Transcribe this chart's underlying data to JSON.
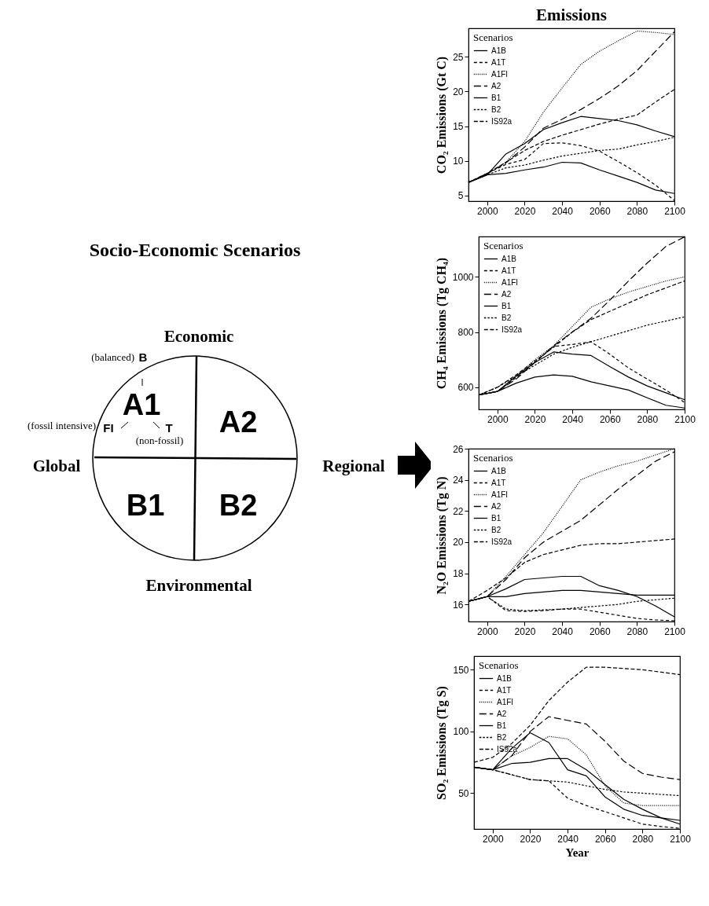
{
  "chart_data": [
    {
      "type": "other",
      "title": "Socio-Economic Scenarios",
      "annotations": [
        "Economic",
        "Environmental",
        "Global",
        "Regional",
        "A1",
        "A2",
        "B1",
        "B2",
        "(balanced)",
        "B",
        "(fossil intensive)",
        "FI",
        "T",
        "(non-fossil)"
      ]
    },
    {
      "type": "line",
      "title": "Emissions",
      "ylabel": "CO₂ Emissions (Gt C)",
      "legend_title": "Scenarios",
      "legend": "top left",
      "grid": false,
      "xlim": [
        1990,
        2100
      ],
      "xticks": [
        2000,
        2020,
        2040,
        2060,
        2080,
        2100
      ],
      "ylim": [
        4.2,
        29.1
      ],
      "yticks": [
        5,
        10,
        15,
        20,
        25
      ],
      "x": [
        1990,
        2000,
        2010,
        2020,
        2030,
        2040,
        2050,
        2060,
        2070,
        2080,
        2090,
        2100
      ],
      "series": [
        {
          "name": "A1B",
          "color": "#000000",
          "line_style": "solid",
          "values": [
            6.9,
            8.0,
            11.0,
            12.5,
            14.5,
            15.5,
            16.4,
            16.1,
            15.8,
            15.2,
            14.3,
            13.5
          ]
        },
        {
          "name": "A1T",
          "color": "#000000",
          "line_style": "dashed",
          "values": [
            6.9,
            8.2,
            9.5,
            10.2,
            12.5,
            12.6,
            12.2,
            11.4,
            9.9,
            8.3,
            6.5,
            4.3
          ]
        },
        {
          "name": "A1FI",
          "color": "#000000",
          "line_style": "dotted",
          "values": [
            6.9,
            8.1,
            9.8,
            12.8,
            17.0,
            20.5,
            23.9,
            25.8,
            27.3,
            28.7,
            28.5,
            28.2
          ]
        },
        {
          "name": "A2",
          "color": "#000000",
          "line_style": "dashed",
          "values": [
            6.9,
            8.2,
            9.7,
            12.0,
            14.7,
            16.0,
            17.4,
            19.0,
            20.8,
            23.0,
            25.8,
            28.6
          ]
        },
        {
          "name": "B1",
          "color": "#000000",
          "line_style": "solid",
          "values": [
            6.9,
            8.0,
            8.2,
            8.7,
            9.1,
            9.8,
            9.7,
            8.7,
            7.8,
            6.9,
            5.8,
            5.3
          ]
        },
        {
          "name": "B2",
          "color": "#000000",
          "line_style": "dashed",
          "values": [
            6.9,
            8.0,
            9.0,
            9.4,
            10.1,
            10.7,
            11.1,
            11.5,
            11.7,
            12.3,
            12.8,
            13.4
          ]
        },
        {
          "name": "IS92a",
          "color": "#000000",
          "line_style": "dashed",
          "values": [
            6.9,
            8.2,
            9.8,
            11.5,
            12.8,
            13.7,
            14.5,
            15.3,
            16.0,
            16.6,
            18.5,
            20.3
          ]
        }
      ]
    },
    {
      "type": "line",
      "ylabel": "CH₄ Emissions (Tg CH₄)",
      "legend_title": "Scenarios",
      "legend": "top left",
      "grid": false,
      "xlim": [
        1990,
        2100
      ],
      "xticks": [
        2000,
        2020,
        2040,
        2060,
        2080,
        2100
      ],
      "ylim": [
        520,
        1146
      ],
      "yticks": [
        600,
        800,
        1000
      ],
      "x": [
        1990,
        2000,
        2010,
        2020,
        2030,
        2040,
        2050,
        2060,
        2070,
        2080,
        2090,
        2100
      ],
      "series": [
        {
          "name": "A1B",
          "color": "#000000",
          "line_style": "solid",
          "values": [
            572,
            585,
            640,
            690,
            728,
            720,
            715,
            675,
            637,
            605,
            580,
            555
          ]
        },
        {
          "name": "A1T",
          "color": "#000000",
          "line_style": "dashed",
          "values": [
            572,
            585,
            635,
            690,
            748,
            755,
            765,
            720,
            670,
            630,
            590,
            545
          ]
        },
        {
          "name": "A1FI",
          "color": "#000000",
          "line_style": "dotted",
          "values": [
            572,
            585,
            640,
            700,
            750,
            820,
            890,
            920,
            945,
            965,
            985,
            1000
          ]
        },
        {
          "name": "A2",
          "color": "#000000",
          "line_style": "dashed",
          "values": [
            572,
            585,
            630,
            690,
            750,
            800,
            850,
            915,
            985,
            1050,
            1110,
            1145
          ]
        },
        {
          "name": "B1",
          "color": "#000000",
          "line_style": "solid",
          "values": [
            572,
            585,
            615,
            637,
            645,
            640,
            620,
            605,
            590,
            562,
            535,
            525
          ]
        },
        {
          "name": "B2",
          "color": "#000000",
          "line_style": "dashed",
          "values": [
            572,
            600,
            640,
            680,
            720,
            745,
            765,
            785,
            805,
            825,
            840,
            855
          ]
        },
        {
          "name": "IS92a",
          "color": "#000000",
          "line_style": "dashed",
          "values": [
            572,
            600,
            645,
            695,
            745,
            800,
            845,
            875,
            905,
            935,
            960,
            985
          ]
        }
      ]
    },
    {
      "type": "line",
      "ylabel": "N₂O Emissions (Tg N)",
      "legend_title": "Scenarios",
      "legend": "top left",
      "grid": false,
      "xlim": [
        1990,
        2100
      ],
      "xticks": [
        2000,
        2020,
        2040,
        2060,
        2080,
        2100
      ],
      "ylim": [
        14.9,
        26
      ],
      "yticks": [
        16,
        18,
        20,
        22,
        24,
        26
      ],
      "x": [
        1990,
        2000,
        2010,
        2020,
        2030,
        2040,
        2050,
        2060,
        2070,
        2080,
        2090,
        2100
      ],
      "series": [
        {
          "name": "A1B",
          "color": "#000000",
          "line_style": "solid",
          "values": [
            16.2,
            16.5,
            17.0,
            17.6,
            17.7,
            17.8,
            17.8,
            17.2,
            16.9,
            16.5,
            15.9,
            15.2
          ]
        },
        {
          "name": "A1T",
          "color": "#000000",
          "line_style": "dashed",
          "values": [
            16.2,
            16.5,
            15.6,
            15.55,
            15.6,
            15.7,
            15.7,
            15.5,
            15.3,
            15.1,
            15.0,
            14.95
          ]
        },
        {
          "name": "A1FI",
          "color": "#000000",
          "line_style": "dotted",
          "values": [
            16.2,
            16.5,
            17.8,
            19.2,
            20.6,
            22.3,
            24.0,
            24.5,
            24.9,
            25.2,
            25.6,
            26.0
          ]
        },
        {
          "name": "A2",
          "color": "#000000",
          "line_style": "dashed",
          "values": [
            16.2,
            16.5,
            17.6,
            19.0,
            20.0,
            20.7,
            21.4,
            22.4,
            23.4,
            24.3,
            25.2,
            25.8
          ]
        },
        {
          "name": "B1",
          "color": "#000000",
          "line_style": "solid",
          "values": [
            16.2,
            16.5,
            16.5,
            16.7,
            16.8,
            16.9,
            16.9,
            16.8,
            16.7,
            16.6,
            16.6,
            16.6
          ]
        },
        {
          "name": "B2",
          "color": "#000000",
          "line_style": "dashed",
          "values": [
            16.2,
            16.5,
            15.7,
            15.6,
            15.65,
            15.7,
            15.8,
            15.9,
            16.0,
            16.2,
            16.3,
            16.4
          ]
        },
        {
          "name": "IS92a",
          "color": "#000000",
          "line_style": "dashed",
          "values": [
            16.2,
            16.9,
            17.7,
            18.7,
            19.2,
            19.5,
            19.8,
            19.9,
            19.9,
            20.0,
            20.1,
            20.2
          ]
        }
      ]
    },
    {
      "type": "line",
      "xlabel": "Year",
      "ylabel": "SO₂ Emissions (Tg S)",
      "legend_title": "Scenarios",
      "legend": "top left",
      "grid": false,
      "xlim": [
        1990,
        2100
      ],
      "xticks": [
        2000,
        2020,
        2040,
        2060,
        2080,
        2100
      ],
      "ylim": [
        21,
        161
      ],
      "yticks": [
        50,
        100,
        150
      ],
      "x": [
        1990,
        2000,
        2010,
        2020,
        2030,
        2040,
        2050,
        2060,
        2070,
        2080,
        2090,
        2100
      ],
      "series": [
        {
          "name": "A1B",
          "color": "#000000",
          "line_style": "solid",
          "values": [
            71,
            69,
            86,
            99,
            91,
            69,
            64,
            47,
            37,
            32,
            30,
            28
          ]
        },
        {
          "name": "A1T",
          "color": "#000000",
          "line_style": "dashed",
          "values": [
            71,
            69,
            65,
            61,
            60,
            46,
            40,
            35,
            30,
            25,
            23,
            21.5
          ]
        },
        {
          "name": "A1FI",
          "color": "#000000",
          "line_style": "dotted",
          "values": [
            71,
            69,
            80,
            87,
            96,
            94,
            81,
            56,
            42,
            40,
            40,
            40
          ]
        },
        {
          "name": "A2",
          "color": "#000000",
          "line_style": "dashed",
          "values": [
            71,
            69,
            80,
            100,
            112,
            109,
            106,
            92,
            76,
            66,
            63,
            61
          ]
        },
        {
          "name": "B1",
          "color": "#000000",
          "line_style": "solid",
          "values": [
            71,
            69,
            74,
            75,
            78,
            78,
            69,
            57,
            45,
            37,
            30,
            25
          ]
        },
        {
          "name": "B2",
          "color": "#000000",
          "line_style": "dashed",
          "values": [
            71,
            69,
            65,
            61,
            60,
            59,
            56,
            53,
            51,
            50,
            49,
            48
          ]
        },
        {
          "name": "IS92a",
          "color": "#000000",
          "line_style": "dashed",
          "values": [
            75,
            79,
            90,
            105,
            125,
            140,
            152,
            152,
            151,
            150,
            148,
            146
          ]
        }
      ]
    }
  ]
}
